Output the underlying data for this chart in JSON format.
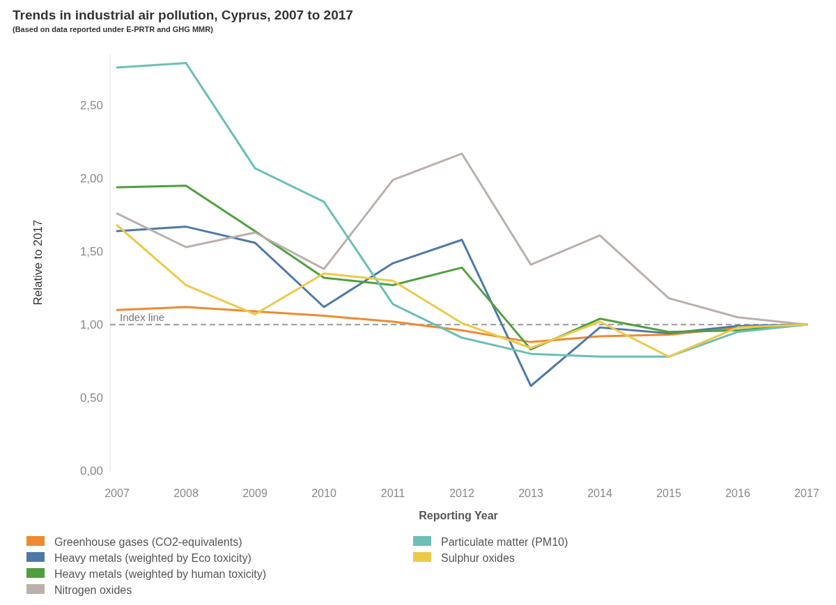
{
  "chart_data": {
    "type": "line",
    "title": "Trends in industrial air pollution, Cyprus, 2007 to 2017",
    "subtitle": "(Based on data reported under E-PRTR and GHG MMR)",
    "xlabel": "Reporting Year",
    "ylabel": "Relative to 2017",
    "categories": [
      "2007",
      "2008",
      "2009",
      "2010",
      "2011",
      "2012",
      "2013",
      "2014",
      "2015",
      "2016",
      "2017"
    ],
    "ylim": [
      0,
      2.85
    ],
    "yticks": [
      {
        "value": 0,
        "label": "0,00"
      },
      {
        "value": 0.5,
        "label": "0,50"
      },
      {
        "value": 1,
        "label": "1,00"
      },
      {
        "value": 1.5,
        "label": "1,50"
      },
      {
        "value": 2,
        "label": "2,00"
      },
      {
        "value": 2.5,
        "label": "2,50"
      }
    ],
    "grid": false,
    "legend": "bottom",
    "marker": "none",
    "line_style": "solid",
    "ref_lines": [
      {
        "axis": "y",
        "value": 1,
        "label": "Index line",
        "color": "#999999",
        "line_style": "dashed"
      }
    ],
    "series": [
      {
        "name": "Greenhouse gases (CO2-equivalents)",
        "color": "#f0892f",
        "values": [
          1.1,
          1.12,
          1.09,
          1.06,
          1.02,
          0.96,
          0.88,
          0.92,
          0.93,
          0.98,
          1.0
        ]
      },
      {
        "name": "Heavy metals (weighted by Eco toxicity)",
        "color": "#4e79a7",
        "values": [
          1.64,
          1.67,
          1.56,
          1.12,
          1.42,
          1.58,
          0.58,
          0.98,
          0.94,
          0.99,
          1.0
        ]
      },
      {
        "name": "Heavy metals (weighted by human toxicity)",
        "color": "#4f9f3f",
        "values": [
          1.94,
          1.95,
          1.64,
          1.32,
          1.27,
          1.39,
          0.83,
          1.04,
          0.95,
          0.96,
          1.0
        ]
      },
      {
        "name": "Nitrogen oxides",
        "color": "#bab0ac",
        "values": [
          1.76,
          1.53,
          1.63,
          1.38,
          1.99,
          2.17,
          1.41,
          1.61,
          1.18,
          1.05,
          1.0
        ]
      },
      {
        "name": "Particulate matter (PM10)",
        "color": "#6bbfb5",
        "values": [
          2.76,
          2.79,
          2.07,
          1.84,
          1.14,
          0.91,
          0.8,
          0.78,
          0.78,
          0.95,
          1.0
        ]
      },
      {
        "name": "Sulphur oxides",
        "color": "#edc948",
        "values": [
          1.68,
          1.27,
          1.07,
          1.35,
          1.3,
          1.01,
          0.84,
          1.02,
          0.78,
          0.98,
          1.0
        ]
      }
    ]
  }
}
